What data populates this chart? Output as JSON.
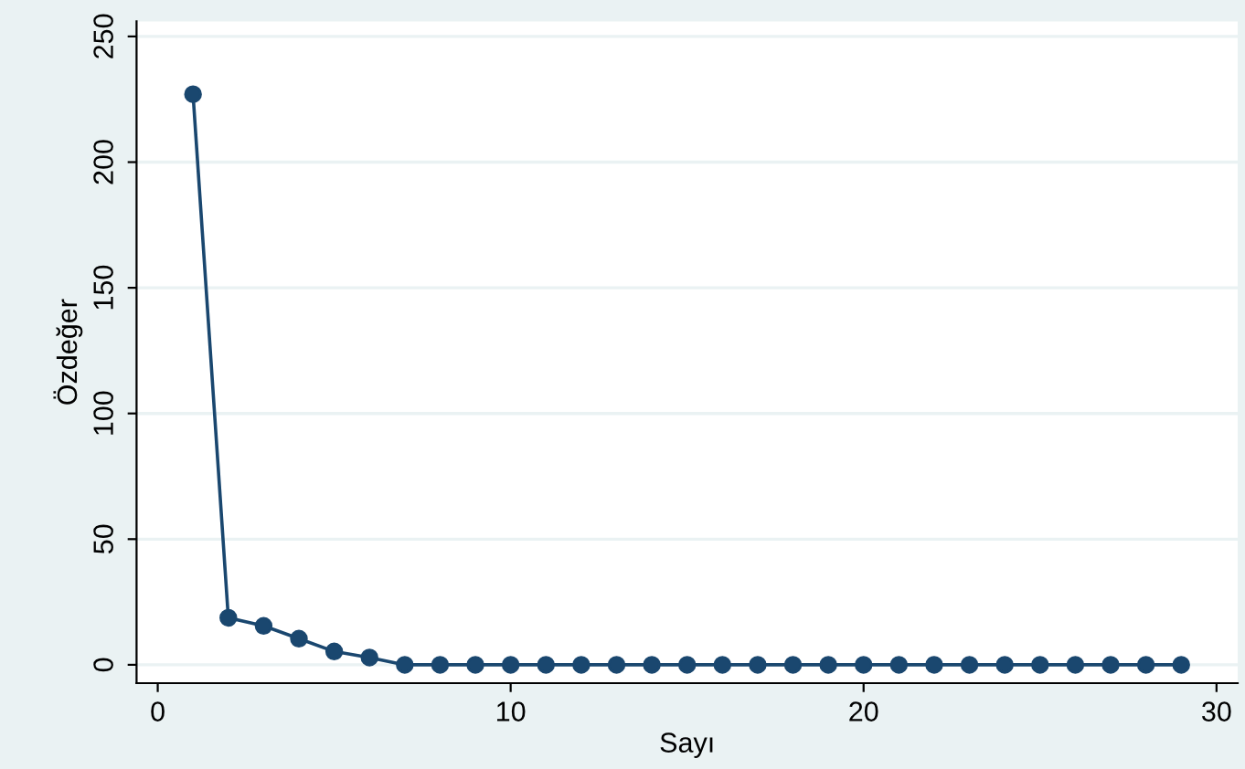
{
  "chart_data": {
    "type": "line",
    "xlabel": "Sayı",
    "ylabel": "Özdeğer",
    "x": [
      1,
      2,
      3,
      4,
      5,
      6,
      7,
      8,
      9,
      10,
      11,
      12,
      13,
      14,
      15,
      16,
      17,
      18,
      19,
      20,
      21,
      22,
      23,
      24,
      25,
      26,
      27,
      28,
      29
    ],
    "series": [
      {
        "color": "#1a476f",
        "values": [
          227,
          18.7,
          15.5,
          10.4,
          5.3,
          2.9,
          0,
          0,
          0,
          0,
          0,
          0,
          0,
          0,
          0,
          0,
          0,
          0,
          0,
          0,
          0,
          0,
          0,
          0,
          0,
          0,
          0,
          0,
          0
        ]
      }
    ],
    "xlim": [
      -0.6,
      30.6
    ],
    "ylim": [
      -7.3,
      256
    ],
    "xticks": [
      0,
      10,
      20,
      30
    ],
    "yticks": [
      0,
      50,
      100,
      150,
      200,
      250
    ],
    "grid": "y",
    "marker": "circle",
    "line_style": "solid"
  }
}
